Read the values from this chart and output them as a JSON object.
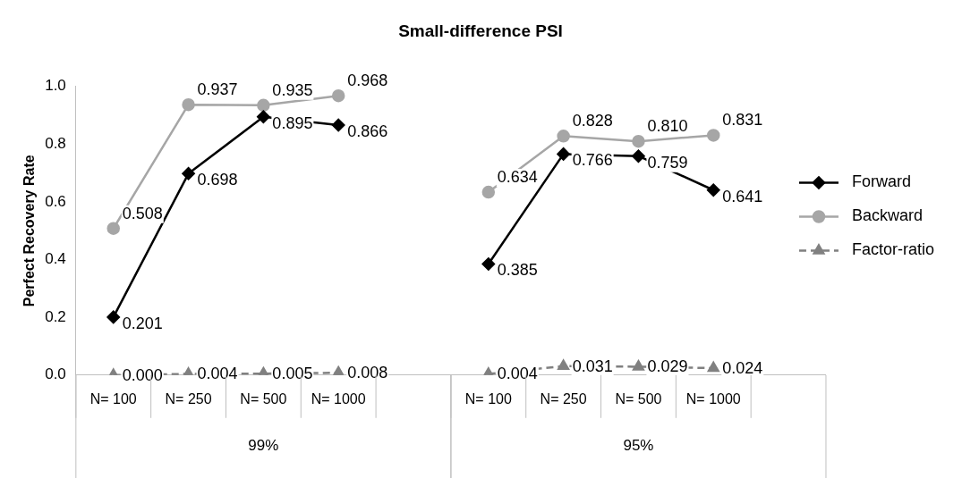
{
  "chart_data": {
    "type": "line",
    "title": "Small-difference PSI",
    "ylabel": "Perfect Recovery Rate",
    "categories": [
      "N= 100",
      "N= 250",
      "N= 500",
      "N= 1000",
      null,
      "N= 100",
      "N= 250",
      "N= 500",
      "N= 1000",
      null
    ],
    "annotations": [
      "99%",
      "95%"
    ],
    "series": [
      {
        "name": "Forward",
        "color": "#000000",
        "marker": "diamond",
        "line_style": "solid",
        "values": [
          0.201,
          0.698,
          0.895,
          0.866,
          null,
          0.385,
          0.766,
          0.759,
          0.641,
          null
        ],
        "value_labels": [
          "0.201",
          "0.698",
          "0.895",
          "0.866",
          null,
          "0.385",
          "0.766",
          "0.759",
          "0.641",
          null
        ]
      },
      {
        "name": "Backward",
        "color": "#a6a6a6",
        "marker": "circle",
        "line_style": "solid",
        "values": [
          0.508,
          0.937,
          0.935,
          0.968,
          null,
          0.634,
          0.828,
          0.81,
          0.831,
          null
        ],
        "value_labels": [
          "0.508",
          "0.937",
          "0.935",
          "0.968",
          null,
          "0.634",
          "0.828",
          "0.810",
          "0.831",
          null
        ]
      },
      {
        "name": "Factor-ratio",
        "color": "#808080",
        "marker": "triangle",
        "line_style": "dashed",
        "values": [
          0.0,
          0.004,
          0.005,
          0.008,
          null,
          0.004,
          0.031,
          0.029,
          0.024,
          null
        ],
        "value_labels": [
          "0.000",
          "0.004",
          "0.005",
          "0.008",
          null,
          "0.004",
          "0.031",
          "0.029",
          "0.024",
          null
        ]
      }
    ],
    "ylim": [
      0,
      1
    ],
    "yticks": [
      {
        "value": 0,
        "label": "0.0"
      },
      {
        "value": 0.2,
        "label": "0.2"
      },
      {
        "value": 0.4,
        "label": "0.4"
      },
      {
        "value": 0.6,
        "label": "0.6"
      },
      {
        "value": 0.8,
        "label": "0.8"
      },
      {
        "value": 1,
        "label": "1.0"
      }
    ],
    "grid": false,
    "legend": "right"
  }
}
